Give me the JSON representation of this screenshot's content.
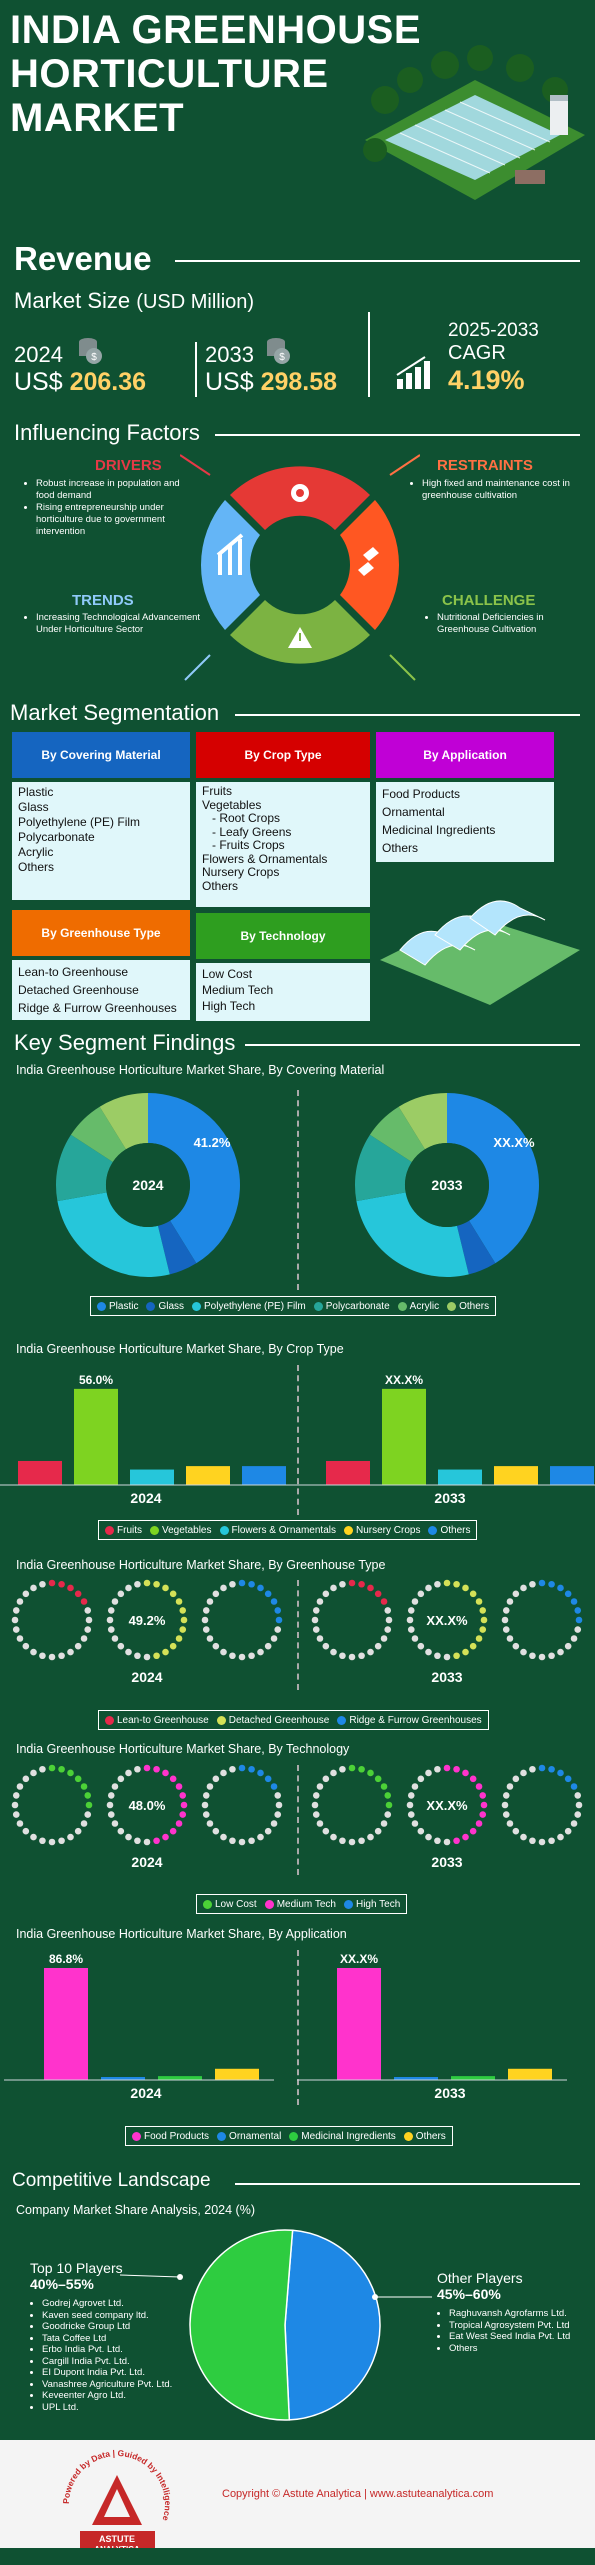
{
  "header": {
    "title_line1": "INDIA GREENHOUSE",
    "title_line2": "HORTICULTURE",
    "title_line3": "MARKET"
  },
  "revenue": {
    "heading": "Revenue",
    "market_size": "Market Size",
    "unit": "(USD Million)",
    "y1": "2024",
    "v1_prefix": "US$",
    "v1": "206.36",
    "y2": "2033",
    "v2_prefix": "US$",
    "v2": "298.58",
    "cagr_years": "2025-2033",
    "cagr_label": "CAGR",
    "cagr": "4.19%"
  },
  "factors": {
    "heading": "Influencing Factors",
    "drivers": {
      "title": "DRIVERS",
      "items": [
        "Robust increase in population and food demand",
        "Rising entrepreneurship under horticulture due to government intervention"
      ]
    },
    "restraints": {
      "title": "RESTRAINTS",
      "items": [
        "High fixed and maintenance cost in greenhouse cultivation"
      ]
    },
    "trends": {
      "title": "TRENDS",
      "items": [
        "Increasing Technological Advancement Under Horticulture Sector"
      ]
    },
    "challenge": {
      "title": "CHALLENGE",
      "items": [
        "Nutritional Deficiencies in Greenhouse Cultivation"
      ]
    }
  },
  "segmentation": {
    "heading": "Market Segmentation",
    "covering": {
      "title": "By Covering Material",
      "items": [
        "Plastic",
        "Glass",
        "Polyethylene (PE) Film",
        "Polycarbonate",
        "Acrylic",
        "Others"
      ]
    },
    "crop": {
      "title": "By Crop Type",
      "items": [
        "Fruits",
        "Vegetables",
        "- Root Crops",
        "- Leafy Greens",
        "- Fruits Crops",
        "Flowers & Ornamentals",
        "Nursery Crops",
        "Others"
      ]
    },
    "application": {
      "title": "By Application",
      "items": [
        "Food Products",
        "Ornamental",
        "Medicinal Ingredients",
        "Others"
      ]
    },
    "greenhouse": {
      "title": "By Greenhouse Type",
      "items": [
        "Lean-to Greenhouse",
        "Detached Greenhouse",
        "Ridge & Furrow Greenhouses"
      ]
    },
    "technology": {
      "title": "By Technology",
      "items": [
        "Low Cost",
        "Medium Tech",
        "High Tech"
      ]
    }
  },
  "findings": {
    "heading": "Key Segment Findings"
  },
  "colors": {
    "red": "#e63946",
    "green": "#7ed321",
    "teal": "#26c6da",
    "yellow": "#ffd320",
    "blue": "#1e88e5",
    "magenta": "#ff33cc",
    "olive": "#9ccc65",
    "pink": "#e91e63"
  },
  "chart_data": [
    {
      "type": "pie",
      "title": "India Greenhouse Horticulture Market Share, By Covering Material",
      "categories": [
        "Plastic",
        "Glass",
        "Polyethylene (PE) Film",
        "Polycarbonate",
        "Acrylic",
        "Others"
      ],
      "series": [
        {
          "name": "2024",
          "values": [
            41.2,
            5,
            26,
            12,
            7,
            8.8
          ],
          "label": "41.2%"
        },
        {
          "name": "2033",
          "values": [
            41.2,
            5,
            26,
            12,
            7,
            8.8
          ],
          "label": "XX.X%"
        }
      ]
    },
    {
      "type": "bar",
      "title": "India Greenhouse Horticulture Market Share, By Crop Type",
      "categories": [
        "Fruits",
        "Vegetables",
        "Flowers & Ornamentals",
        "Nursery Crops",
        "Others"
      ],
      "series": [
        {
          "name": "2024",
          "values": [
            14,
            56,
            9,
            11,
            11
          ],
          "label": "56.0%"
        },
        {
          "name": "2033",
          "values": [
            14,
            56,
            9,
            11,
            11
          ],
          "label": "XX.X%"
        }
      ]
    },
    {
      "type": "pie",
      "title": "India Greenhouse Horticulture Market Share, By Greenhouse Type",
      "categories": [
        "Lean-to Greenhouse",
        "Detached Greenhouse",
        "Ridge & Furrow Greenhouses"
      ],
      "series": [
        {
          "name": "2024",
          "values": [
            20,
            49.2,
            30.8
          ],
          "label": "49.2%"
        },
        {
          "name": "2033",
          "values": [
            20,
            49.2,
            30.8
          ],
          "label": "XX.X%"
        }
      ]
    },
    {
      "type": "pie",
      "title": "India Greenhouse Horticulture Market Share, By Technology",
      "categories": [
        "Low Cost",
        "Medium Tech",
        "High Tech"
      ],
      "series": [
        {
          "name": "2024",
          "values": [
            30,
            48.0,
            22
          ],
          "label": "48.0%"
        },
        {
          "name": "2033",
          "values": [
            30,
            48.0,
            22
          ],
          "label": "XX.X%"
        }
      ]
    },
    {
      "type": "bar",
      "title": "India Greenhouse Horticulture Market Share, By Application",
      "categories": [
        "Food Products",
        "Ornamental",
        "Medicinal Ingredients",
        "Others"
      ],
      "series": [
        {
          "name": "2024",
          "values": [
            86.8,
            1.5,
            3,
            8.7
          ],
          "label": "86.8%"
        },
        {
          "name": "2033",
          "values": [
            86.8,
            1.5,
            3,
            8.7
          ],
          "label": "XX.X%"
        }
      ]
    },
    {
      "type": "pie",
      "title": "Company Market Share Analysis, 2024 (%)",
      "categories": [
        "Top 10 Players",
        "Other Players"
      ],
      "values": [
        52,
        48
      ]
    }
  ],
  "competitive": {
    "heading": "Competitive Landscape",
    "subtitle": "Company Market Share Analysis, 2024 (%)",
    "top": {
      "title": "Top 10 Players",
      "range": "40%–55%",
      "items": [
        "Godrej Agrovet Ltd.",
        "Kaven seed company ltd.",
        "Goodricke Group Ltd",
        "Tata Coffee Ltd",
        "Erbo India Pvt. Ltd.",
        "Cargill India Pvt. Ltd.",
        "EI Dupont India Pvt. Ltd.",
        "Vanashree Agriculture Pvt. Ltd.",
        "Keveenter Agro Ltd.",
        "UPL Ltd."
      ]
    },
    "other": {
      "title": "Other Players",
      "range": "45%–60%",
      "items": [
        "Raghuvansh Agrofarms Ltd.",
        "Tropical Agrosystem Pvt. Ltd",
        "Eat West Seed India Pvt. Ltd",
        "Others"
      ]
    }
  },
  "footer": {
    "copyright": "Copyright © Astute Analytica | www.astuteanalytica.com",
    "logo_ring": "Powered by Data | Guided by Intelligence",
    "logo_name": "ASTUTE",
    "logo_sub": "ANALYTICA"
  }
}
